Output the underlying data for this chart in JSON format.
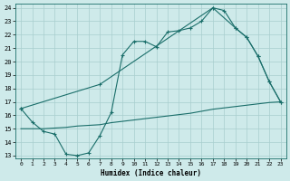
{
  "xlabel": "Humidex (Indice chaleur)",
  "bg_color": "#ceeaea",
  "grid_color": "#a8cece",
  "line_color": "#1a6e6a",
  "xlim": [
    -0.5,
    23.5
  ],
  "ylim": [
    12.8,
    24.3
  ],
  "yticks": [
    13,
    14,
    15,
    16,
    17,
    18,
    19,
    20,
    21,
    22,
    23,
    24
  ],
  "xticks": [
    0,
    1,
    2,
    3,
    4,
    5,
    6,
    7,
    8,
    9,
    10,
    11,
    12,
    13,
    14,
    15,
    16,
    17,
    18,
    19,
    20,
    21,
    22,
    23
  ],
  "curve1_x": [
    0,
    1,
    2,
    3,
    4,
    5,
    6,
    7,
    8,
    9,
    10,
    11,
    12,
    13,
    14,
    15,
    16,
    17,
    18,
    19,
    20,
    21,
    22,
    23
  ],
  "curve1_y": [
    16.5,
    15.5,
    14.8,
    14.6,
    13.1,
    13.0,
    13.2,
    14.5,
    16.2,
    20.5,
    21.5,
    21.5,
    21.1,
    22.2,
    22.3,
    22.5,
    23.0,
    24.0,
    23.8,
    22.5,
    21.8,
    20.4,
    18.5,
    17.0
  ],
  "curve2_x": [
    0,
    7,
    17,
    19,
    20,
    21,
    22,
    23
  ],
  "curve2_y": [
    16.5,
    18.3,
    24.0,
    22.5,
    21.8,
    20.4,
    18.5,
    17.0
  ],
  "curve3_x": [
    0,
    1,
    2,
    3,
    4,
    5,
    6,
    7,
    8,
    9,
    10,
    11,
    12,
    13,
    14,
    15,
    16,
    17,
    18,
    19,
    20,
    21,
    22,
    23
  ],
  "curve3_y": [
    15.0,
    15.0,
    15.0,
    15.05,
    15.1,
    15.2,
    15.25,
    15.3,
    15.45,
    15.55,
    15.65,
    15.75,
    15.85,
    15.95,
    16.05,
    16.15,
    16.3,
    16.45,
    16.55,
    16.65,
    16.75,
    16.85,
    16.95,
    17.0
  ]
}
